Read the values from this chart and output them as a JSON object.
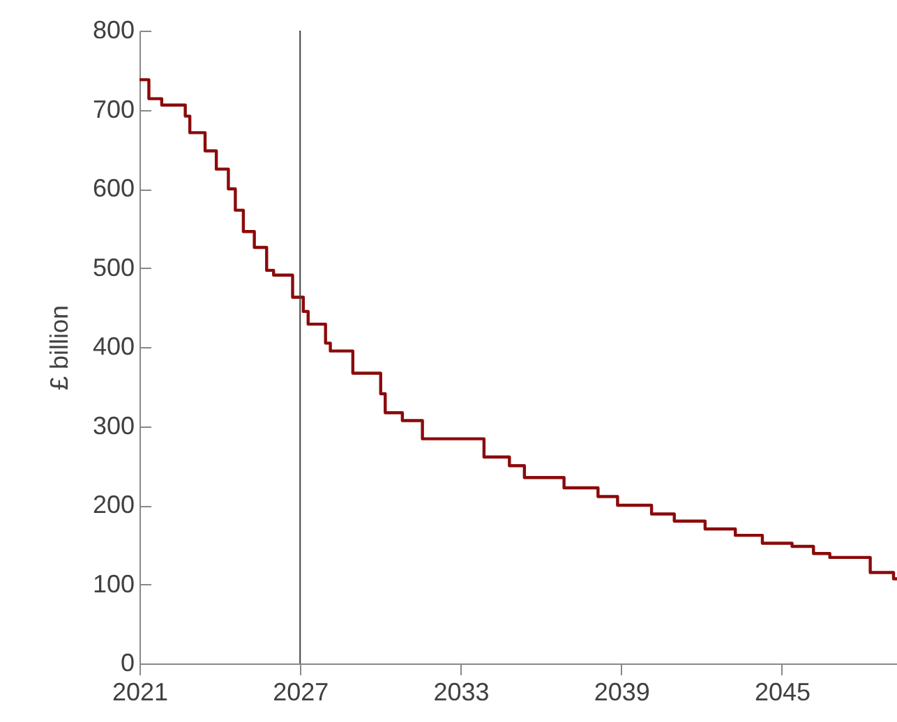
{
  "chart_data": {
    "type": "step",
    "ylabel": "£ billion",
    "x": [
      2021.0,
      2021.35,
      2021.83,
      2022.71,
      2022.88,
      2023.45,
      2023.87,
      2024.32,
      2024.58,
      2024.88,
      2025.29,
      2025.75,
      2026.01,
      2026.72,
      2027.12,
      2027.3,
      2027.95,
      2028.13,
      2028.97,
      2030.01,
      2030.18,
      2030.82,
      2031.57,
      2033.87,
      2034.82,
      2035.38,
      2036.86,
      2038.13,
      2038.86,
      2040.13,
      2040.98,
      2042.13,
      2043.26,
      2044.27,
      2045.38,
      2046.18,
      2046.79,
      2048.3,
      2049.17,
      2049.3
    ],
    "series": [
      {
        "color": "#8b0a0a",
        "values": [
          738,
          714,
          706,
          692,
          671,
          648,
          625,
          600,
          573,
          546,
          526,
          497,
          491,
          463,
          445,
          429,
          405,
          395,
          367,
          341,
          317,
          307,
          284,
          261,
          250,
          235,
          222,
          211,
          200,
          189,
          180,
          170,
          162,
          152,
          148,
          139,
          134,
          115,
          107,
          107
        ]
      }
    ],
    "xlim": [
      2021,
      2049.3
    ],
    "xticks": [
      2021,
      2027,
      2033,
      2039,
      2045
    ],
    "ylim": [
      0,
      800
    ],
    "yticks": [
      0,
      100,
      200,
      300,
      400,
      500,
      600,
      700,
      800
    ],
    "ref_lines": [
      {
        "axis": "x",
        "value": 2027,
        "color": "#404040"
      }
    ],
    "grid": false
  }
}
